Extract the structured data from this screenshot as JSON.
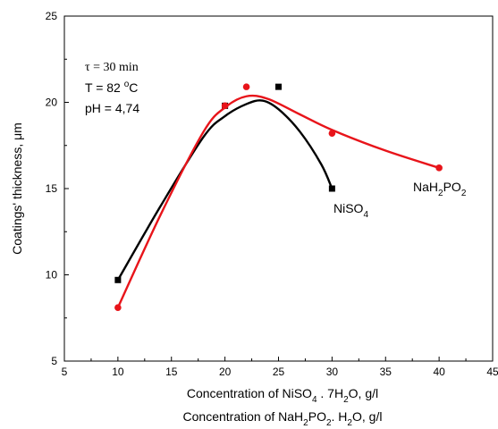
{
  "chart_data": {
    "type": "line",
    "x_axis": {
      "min": 5,
      "max": 45,
      "ticks": [
        5,
        10,
        15,
        20,
        25,
        30,
        35,
        40,
        45
      ],
      "label_line1": {
        "pre": "Concentration of NiSO",
        "sub1": "4",
        "mid": " . 7H",
        "sub2": "2",
        "post": "O, g/l"
      },
      "label_line2": {
        "pre": "Concentration of NaH",
        "sub1": "2",
        "mid": "PO",
        "sub2": "2",
        "post": ". H",
        "sub3": "2",
        "post2": "O, g/l"
      }
    },
    "y_axis": {
      "min": 5,
      "max": 25,
      "ticks": [
        5,
        10,
        15,
        20,
        25
      ],
      "label": "Coatings' thickness, μm"
    },
    "conditions": {
      "tau": "τ = 30 min",
      "temp_pre": "T = 82 ",
      "temp_deg": "o",
      "temp_post": "C",
      "ph": "pH = 4,74"
    },
    "series": [
      {
        "name": "NiSO4",
        "label_pre": "NiSO",
        "label_sub": "4",
        "color": "#000000",
        "marker": "square",
        "x": [
          10,
          20,
          25,
          30
        ],
        "y": [
          9.7,
          19.8,
          20.9,
          15.0
        ],
        "fit": [
          [
            10,
            9.7
          ],
          [
            14,
            14.0
          ],
          [
            18,
            18.0
          ],
          [
            20,
            19.2
          ],
          [
            22,
            19.9
          ],
          [
            23.5,
            20.1
          ],
          [
            25,
            19.6
          ],
          [
            27,
            18.3
          ],
          [
            29,
            16.4
          ],
          [
            30,
            15.0
          ]
        ]
      },
      {
        "name": "NaH2PO2",
        "label_pre": "NaH",
        "label_sub1": "2",
        "label_mid": "PO",
        "label_sub2": "2",
        "color": "#e8141a",
        "marker": "circle",
        "x": [
          10,
          20,
          22,
          30,
          40
        ],
        "y": [
          8.1,
          19.8,
          20.9,
          18.2,
          16.2
        ],
        "fit": [
          [
            10,
            8.1
          ],
          [
            14,
            13.5
          ],
          [
            18,
            18.3
          ],
          [
            20,
            19.7
          ],
          [
            22,
            20.35
          ],
          [
            24,
            20.2
          ],
          [
            27,
            19.3
          ],
          [
            30,
            18.4
          ],
          [
            35,
            17.2
          ],
          [
            40,
            16.2
          ]
        ]
      }
    ]
  }
}
